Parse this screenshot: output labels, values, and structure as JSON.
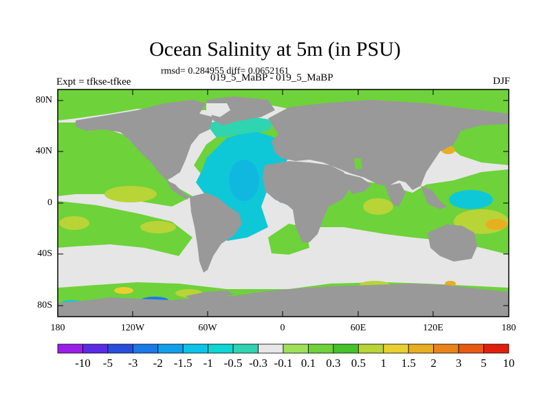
{
  "title": "Ocean Salinity at 5m (in PSU)",
  "stats_text": "rmsd= 0.284955 diff= 0.0652161",
  "experiment_text": "Expt = tfkse-tfkee",
  "runs_text": "019_5_MaBP - 019_5_MaBP",
  "season": "DJF",
  "y_axis_labels": [
    "80N",
    "40N",
    "0",
    "40S",
    "80S"
  ],
  "x_axis_labels": [
    "180",
    "120W",
    "60W",
    "0",
    "60E",
    "120E",
    "180"
  ],
  "colorbar": {
    "labels": [
      "-10",
      "-5",
      "-3",
      "-2",
      "-1.5",
      "-1",
      "-0.5",
      "-0.3",
      "-0.1",
      "0.1",
      "0.3",
      "0.5",
      "1",
      "1.5",
      "2",
      "3",
      "5",
      "10"
    ],
    "colors": [
      "#9a1fe8",
      "#5a2ae6",
      "#2a4cdd",
      "#1a78e8",
      "#10a0ea",
      "#0cc3e8",
      "#0ed6d2",
      "#2fd4b0",
      "#e6e6e6",
      "#9fe05a",
      "#6ed23a",
      "#46c22a",
      "#b8d436",
      "#e8d030",
      "#e8ae22",
      "#e8841a",
      "#e85a12",
      "#e0200c"
    ]
  },
  "colors": {
    "land": "#999999",
    "neutral": "#e6e6e6",
    "salty_low": "#6ed23a",
    "salty_mid": "#b8d436",
    "salty_high": "#e8ae22",
    "fresh_low": "#2fd4b0",
    "fresh_mid": "#0ec8d8",
    "fresh_high": "#1a78e8"
  }
}
